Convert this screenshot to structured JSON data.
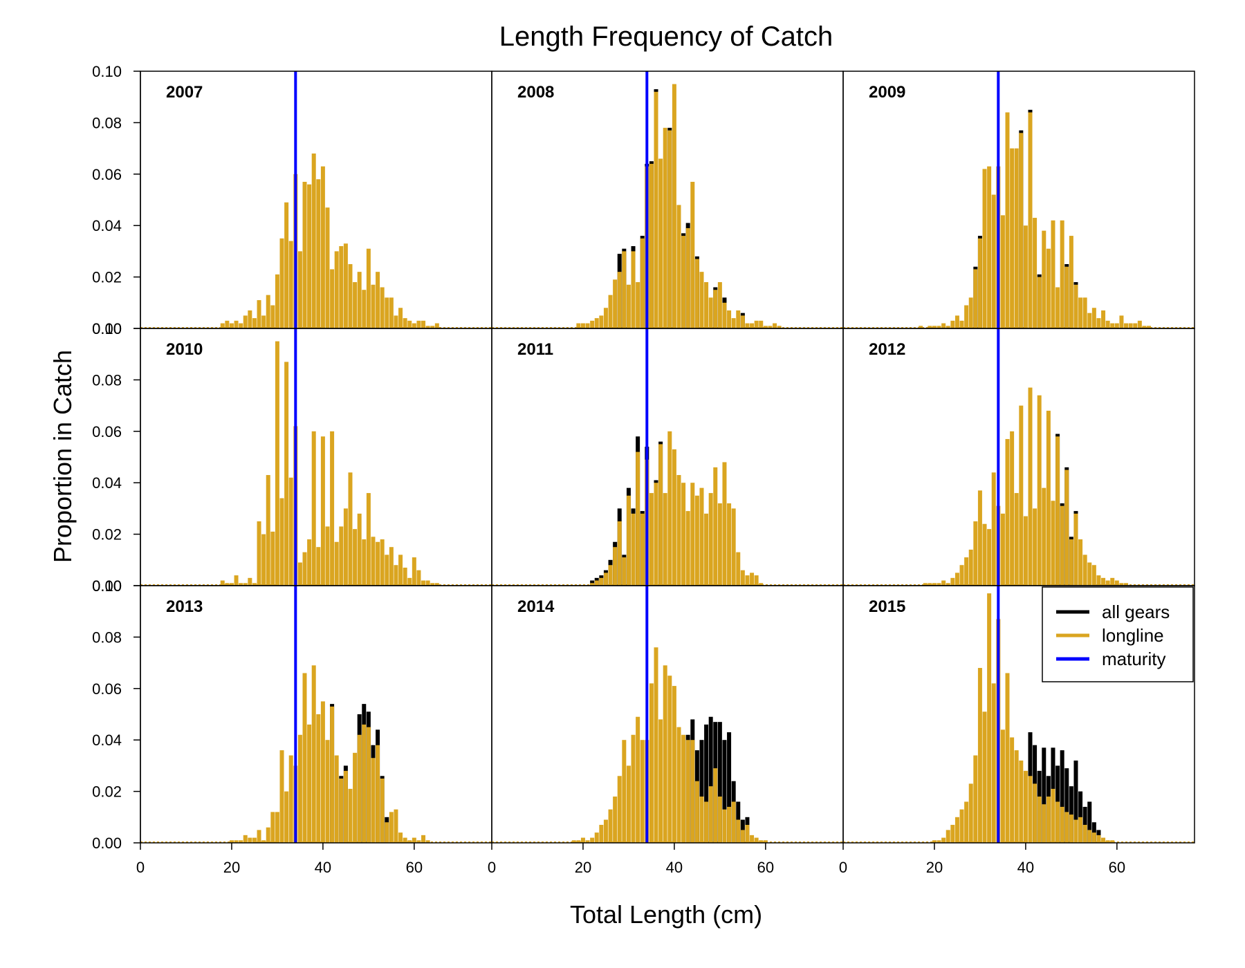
{
  "chart_data": {
    "type": "bar",
    "title": "Length Frequency of Catch",
    "xlabel": "Total Length (cm)",
    "ylabel": "Proportion in Catch",
    "xlim": [
      0,
      77
    ],
    "ylim": [
      0,
      0.1
    ],
    "x_ticks": [
      0,
      20,
      40,
      60
    ],
    "x_tick_labels": [
      "0",
      "20",
      "40",
      "60"
    ],
    "y_ticks": [
      0.0,
      0.02,
      0.04,
      0.06,
      0.08,
      0.1
    ],
    "y_tick_labels": [
      "0.00",
      "0.02",
      "0.04",
      "0.06",
      "0.08",
      "0.10"
    ],
    "maturity_length": 34,
    "grid": false,
    "legend_position": "top-right of last panel",
    "legend": [
      {
        "label": "all gears",
        "color": "#000000"
      },
      {
        "label": "longline",
        "color": "#DAA520"
      },
      {
        "label": "maturity",
        "color": "#0000FF"
      }
    ],
    "colors": {
      "all_gears": "#000000",
      "longline": "#DAA520",
      "maturity": "#0000FF"
    },
    "panels": [
      {
        "year": "2007",
        "longline": {
          "18": 0.002,
          "19": 0.003,
          "20": 0.002,
          "21": 0.003,
          "22": 0.002,
          "23": 0.005,
          "24": 0.007,
          "25": 0.004,
          "26": 0.011,
          "27": 0.005,
          "28": 0.013,
          "29": 0.009,
          "30": 0.021,
          "31": 0.035,
          "32": 0.049,
          "33": 0.034,
          "34": 0.06,
          "35": 0.03,
          "36": 0.057,
          "37": 0.056,
          "38": 0.068,
          "39": 0.058,
          "40": 0.063,
          "41": 0.047,
          "42": 0.023,
          "43": 0.03,
          "44": 0.032,
          "45": 0.033,
          "46": 0.025,
          "47": 0.018,
          "48": 0.022,
          "49": 0.015,
          "50": 0.031,
          "51": 0.017,
          "52": 0.022,
          "53": 0.016,
          "54": 0.012,
          "55": 0.012,
          "56": 0.005,
          "57": 0.008,
          "58": 0.004,
          "59": 0.003,
          "60": 0.002,
          "61": 0.003,
          "62": 0.003,
          "63": 0.001,
          "64": 0.001,
          "65": 0.002
        }
      },
      {
        "year": "2008",
        "longline": {
          "19": 0.002,
          "20": 0.002,
          "21": 0.002,
          "22": 0.003,
          "23": 0.004,
          "24": 0.005,
          "25": 0.008,
          "26": 0.013,
          "27": 0.019,
          "28": 0.022,
          "29": 0.03,
          "30": 0.017,
          "31": 0.03,
          "32": 0.018,
          "33": 0.035,
          "34": 0.063,
          "35": 0.064,
          "36": 0.092,
          "37": 0.066,
          "38": 0.078,
          "39": 0.077,
          "40": 0.095,
          "41": 0.048,
          "42": 0.036,
          "43": 0.039,
          "44": 0.057,
          "45": 0.027,
          "46": 0.022,
          "47": 0.018,
          "48": 0.012,
          "49": 0.015,
          "50": 0.018,
          "51": 0.01,
          "52": 0.007,
          "53": 0.004,
          "54": 0.007,
          "55": 0.005,
          "56": 0.002,
          "57": 0.002,
          "58": 0.003,
          "59": 0.003,
          "60": 0.001,
          "61": 0.001,
          "62": 0.002,
          "63": 0.001
        },
        "all_gears": {
          "28": 0.029,
          "29": 0.031,
          "31": 0.032,
          "33": 0.036,
          "34": 0.064,
          "35": 0.065,
          "36": 0.093,
          "39": 0.078,
          "42": 0.037,
          "43": 0.041,
          "45": 0.028,
          "49": 0.016,
          "51": 0.012,
          "55": 0.006
        }
      },
      {
        "year": "2009",
        "longline": {
          "17": 0.001,
          "19": 0.001,
          "20": 0.001,
          "21": 0.001,
          "22": 0.002,
          "23": 0.001,
          "24": 0.003,
          "25": 0.005,
          "26": 0.003,
          "27": 0.009,
          "28": 0.012,
          "29": 0.023,
          "30": 0.035,
          "31": 0.062,
          "32": 0.063,
          "33": 0.052,
          "34": 0.063,
          "35": 0.044,
          "36": 0.084,
          "37": 0.07,
          "38": 0.07,
          "39": 0.076,
          "40": 0.04,
          "41": 0.084,
          "42": 0.043,
          "43": 0.02,
          "44": 0.038,
          "45": 0.031,
          "46": 0.042,
          "47": 0.016,
          "48": 0.042,
          "49": 0.024,
          "50": 0.036,
          "51": 0.017,
          "52": 0.012,
          "53": 0.012,
          "54": 0.006,
          "55": 0.008,
          "56": 0.004,
          "57": 0.007,
          "58": 0.003,
          "59": 0.002,
          "60": 0.002,
          "61": 0.005,
          "62": 0.002,
          "63": 0.002,
          "64": 0.002,
          "65": 0.003,
          "66": 0.001,
          "67": 0.001
        },
        "all_gears": {
          "29": 0.024,
          "30": 0.036,
          "39": 0.077,
          "41": 0.085,
          "43": 0.021,
          "49": 0.025,
          "51": 0.018
        }
      },
      {
        "year": "2010",
        "longline": {
          "18": 0.002,
          "19": 0.001,
          "20": 0.001,
          "21": 0.004,
          "22": 0.001,
          "23": 0.001,
          "24": 0.003,
          "25": 0.001,
          "26": 0.025,
          "27": 0.02,
          "28": 0.043,
          "29": 0.021,
          "30": 0.095,
          "31": 0.034,
          "32": 0.087,
          "33": 0.042,
          "34": 0.062,
          "35": 0.009,
          "36": 0.013,
          "37": 0.018,
          "38": 0.06,
          "39": 0.015,
          "40": 0.058,
          "41": 0.023,
          "42": 0.06,
          "43": 0.017,
          "44": 0.023,
          "45": 0.03,
          "46": 0.044,
          "47": 0.022,
          "48": 0.028,
          "49": 0.018,
          "50": 0.036,
          "51": 0.019,
          "52": 0.017,
          "53": 0.018,
          "54": 0.012,
          "55": 0.015,
          "56": 0.008,
          "57": 0.012,
          "58": 0.007,
          "59": 0.003,
          "60": 0.011,
          "61": 0.006,
          "62": 0.002,
          "63": 0.002,
          "64": 0.001,
          "65": 0.001
        },
        "all_gears": {}
      },
      {
        "year": "2011",
        "longline": {
          "22": 0.001,
          "23": 0.002,
          "24": 0.003,
          "25": 0.005,
          "26": 0.008,
          "27": 0.015,
          "28": 0.025,
          "29": 0.011,
          "30": 0.035,
          "31": 0.028,
          "32": 0.052,
          "33": 0.028,
          "34": 0.049,
          "35": 0.036,
          "36": 0.04,
          "37": 0.055,
          "38": 0.036,
          "39": 0.06,
          "40": 0.053,
          "41": 0.043,
          "42": 0.04,
          "43": 0.029,
          "44": 0.04,
          "45": 0.035,
          "46": 0.038,
          "47": 0.028,
          "48": 0.036,
          "49": 0.046,
          "50": 0.032,
          "51": 0.048,
          "52": 0.032,
          "53": 0.03,
          "54": 0.013,
          "55": 0.006,
          "56": 0.004,
          "57": 0.005,
          "58": 0.004,
          "59": 0.001
        },
        "all_gears": {
          "22": 0.002,
          "23": 0.003,
          "24": 0.004,
          "25": 0.006,
          "26": 0.01,
          "27": 0.017,
          "28": 0.03,
          "29": 0.012,
          "30": 0.038,
          "31": 0.03,
          "32": 0.058,
          "33": 0.029,
          "34": 0.054,
          "36": 0.041,
          "37": 0.056
        }
      },
      {
        "year": "2012",
        "longline": {
          "18": 0.001,
          "19": 0.001,
          "20": 0.001,
          "21": 0.001,
          "22": 0.002,
          "23": 0.001,
          "24": 0.003,
          "25": 0.005,
          "26": 0.008,
          "27": 0.011,
          "28": 0.014,
          "29": 0.025,
          "30": 0.037,
          "31": 0.024,
          "32": 0.022,
          "33": 0.044,
          "34": 0.031,
          "35": 0.028,
          "36": 0.057,
          "37": 0.06,
          "38": 0.036,
          "39": 0.07,
          "40": 0.027,
          "41": 0.077,
          "42": 0.03,
          "43": 0.074,
          "44": 0.038,
          "45": 0.068,
          "46": 0.033,
          "47": 0.058,
          "48": 0.031,
          "49": 0.045,
          "50": 0.018,
          "51": 0.028,
          "52": 0.018,
          "53": 0.012,
          "54": 0.009,
          "55": 0.008,
          "56": 0.004,
          "57": 0.003,
          "58": 0.002,
          "59": 0.003,
          "60": 0.002,
          "61": 0.001,
          "62": 0.001
        },
        "all_gears": {
          "47": 0.059,
          "48": 0.032,
          "49": 0.046,
          "50": 0.019,
          "51": 0.029
        }
      },
      {
        "year": "2013",
        "longline": {
          "20": 0.001,
          "21": 0.001,
          "22": 0.001,
          "23": 0.003,
          "24": 0.002,
          "25": 0.002,
          "26": 0.005,
          "27": 0.001,
          "28": 0.006,
          "29": 0.012,
          "30": 0.012,
          "31": 0.036,
          "32": 0.02,
          "33": 0.034,
          "34": 0.03,
          "35": 0.042,
          "36": 0.066,
          "37": 0.046,
          "38": 0.069,
          "39": 0.05,
          "40": 0.055,
          "41": 0.04,
          "42": 0.053,
          "43": 0.034,
          "44": 0.025,
          "45": 0.028,
          "46": 0.021,
          "47": 0.035,
          "48": 0.042,
          "49": 0.046,
          "50": 0.045,
          "51": 0.033,
          "52": 0.038,
          "53": 0.025,
          "54": 0.008,
          "55": 0.012,
          "56": 0.013,
          "57": 0.004,
          "58": 0.002,
          "59": 0.001,
          "60": 0.002,
          "61": 0.001,
          "62": 0.003,
          "63": 0.001
        },
        "all_gears": {
          "42": 0.054,
          "44": 0.026,
          "45": 0.03,
          "48": 0.05,
          "49": 0.054,
          "50": 0.051,
          "51": 0.038,
          "52": 0.044,
          "53": 0.026,
          "54": 0.01
        }
      },
      {
        "year": "2014",
        "longline": {
          "18": 0.001,
          "19": 0.001,
          "20": 0.002,
          "21": 0.001,
          "22": 0.002,
          "23": 0.004,
          "24": 0.007,
          "25": 0.009,
          "26": 0.013,
          "27": 0.018,
          "28": 0.026,
          "29": 0.04,
          "30": 0.03,
          "31": 0.042,
          "32": 0.049,
          "33": 0.04,
          "34": 0.04,
          "35": 0.062,
          "36": 0.076,
          "37": 0.048,
          "38": 0.069,
          "39": 0.065,
          "40": 0.061,
          "41": 0.045,
          "42": 0.042,
          "43": 0.04,
          "44": 0.04,
          "45": 0.024,
          "46": 0.018,
          "47": 0.016,
          "48": 0.022,
          "49": 0.029,
          "50": 0.018,
          "51": 0.013,
          "52": 0.014,
          "53": 0.016,
          "54": 0.009,
          "55": 0.005,
          "56": 0.007,
          "57": 0.003,
          "58": 0.002,
          "59": 0.001,
          "60": 0.001
        },
        "all_gears": {
          "43": 0.042,
          "44": 0.048,
          "45": 0.036,
          "46": 0.04,
          "47": 0.046,
          "48": 0.049,
          "49": 0.047,
          "50": 0.047,
          "51": 0.04,
          "52": 0.043,
          "53": 0.024,
          "54": 0.016,
          "55": 0.009,
          "56": 0.01
        }
      },
      {
        "year": "2015",
        "longline": {
          "20": 0.001,
          "21": 0.001,
          "22": 0.002,
          "23": 0.005,
          "24": 0.007,
          "25": 0.01,
          "26": 0.013,
          "27": 0.016,
          "28": 0.023,
          "29": 0.034,
          "30": 0.068,
          "31": 0.051,
          "32": 0.097,
          "33": 0.062,
          "34": 0.087,
          "35": 0.044,
          "36": 0.066,
          "37": 0.041,
          "38": 0.036,
          "39": 0.032,
          "40": 0.028,
          "41": 0.026,
          "42": 0.023,
          "43": 0.018,
          "44": 0.015,
          "45": 0.018,
          "46": 0.021,
          "47": 0.016,
          "48": 0.014,
          "49": 0.012,
          "50": 0.011,
          "51": 0.009,
          "52": 0.01,
          "53": 0.007,
          "54": 0.005,
          "55": 0.004,
          "56": 0.003,
          "57": 0.002,
          "58": 0.001,
          "59": 0.001
        },
        "all_gears": {
          "41": 0.043,
          "42": 0.038,
          "43": 0.028,
          "44": 0.037,
          "45": 0.026,
          "46": 0.037,
          "47": 0.03,
          "48": 0.036,
          "49": 0.029,
          "50": 0.022,
          "51": 0.032,
          "52": 0.02,
          "53": 0.014,
          "54": 0.016,
          "55": 0.008,
          "56": 0.005
        }
      }
    ]
  }
}
